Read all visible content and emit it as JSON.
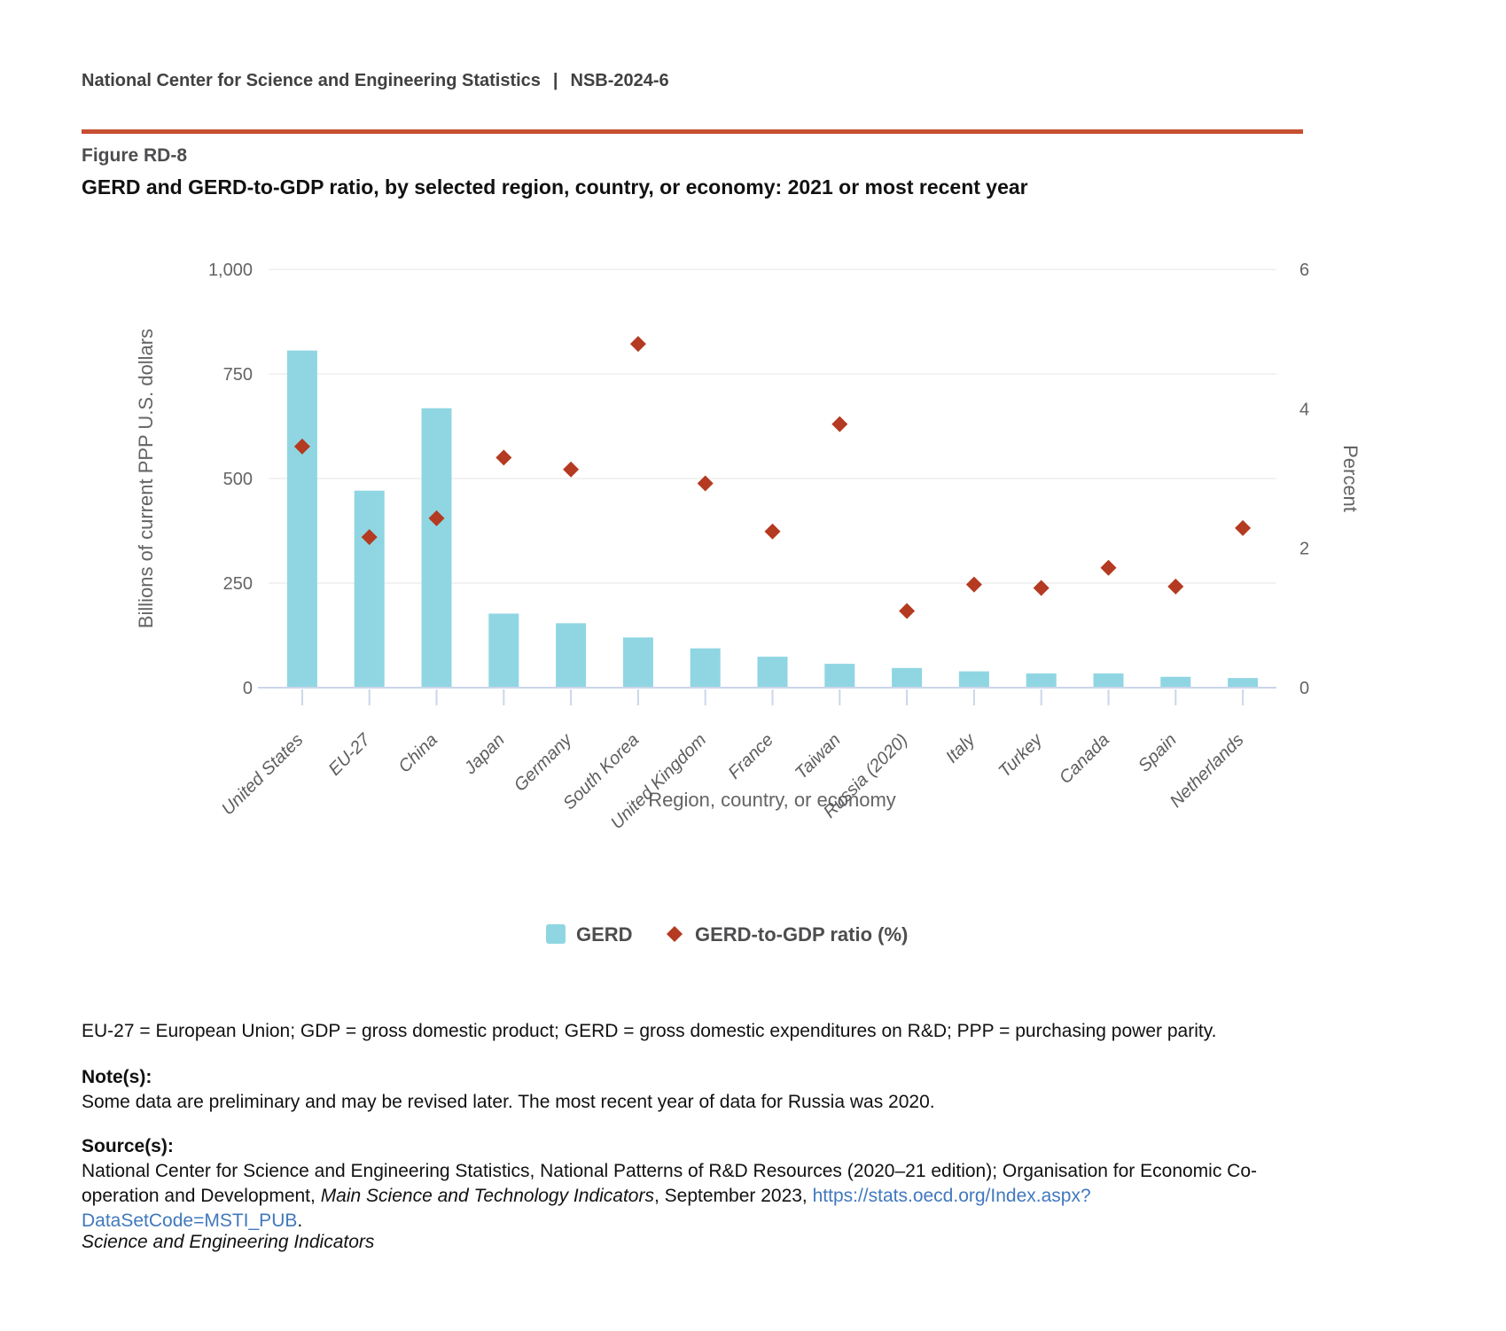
{
  "header": {
    "org": "National Center for Science and Engineering Statistics",
    "separator": "|",
    "report_id": "NSB-2024-6"
  },
  "figure": {
    "label": "Figure RD-8",
    "title": "GERD and GERD-to-GDP ratio, by selected region, country, or economy: 2021 or most recent year"
  },
  "chart_data": {
    "type": "bar",
    "categories": [
      "United States",
      "EU-27",
      "China",
      "Japan",
      "Germany",
      "South Korea",
      "United Kingdom",
      "France",
      "Taiwan",
      "Russia (2020)",
      "Italy",
      "Turkey",
      "Canada",
      "Spain",
      "Netherlands"
    ],
    "series": [
      {
        "name": "GERD",
        "type": "bar",
        "axis": "left",
        "values": [
          806,
          471,
          668,
          177,
          154,
          120,
          94,
          74,
          57,
          47,
          39,
          34,
          34,
          26,
          23
        ]
      },
      {
        "name": "GERD-to-GDP ratio (%)",
        "type": "scatter",
        "axis": "right",
        "values": [
          3.46,
          2.16,
          2.43,
          3.3,
          3.13,
          4.93,
          2.93,
          2.24,
          3.78,
          1.1,
          1.48,
          1.43,
          1.72,
          1.45,
          2.29
        ]
      }
    ],
    "xlabel": "Region, country, or economy",
    "ylabel_left": "Billions of current PPP U.S. dollars",
    "ylabel_right": "Percent",
    "left_axis": {
      "min": 0,
      "max": 1000,
      "ticks": [
        {
          "v": 0,
          "label": "0"
        },
        {
          "v": 250,
          "label": "250"
        },
        {
          "v": 500,
          "label": "500"
        },
        {
          "v": 750,
          "label": "750"
        },
        {
          "v": 1000,
          "label": "1,000"
        }
      ]
    },
    "right_axis": {
      "min": 0,
      "max": 6,
      "ticks": [
        {
          "v": 0,
          "label": "0"
        },
        {
          "v": 2,
          "label": "2"
        },
        {
          "v": 4,
          "label": "4"
        },
        {
          "v": 6,
          "label": "6"
        }
      ]
    },
    "grid": true,
    "legend_position": "bottom"
  },
  "legend": {
    "gerd": "GERD",
    "ratio": "GERD-to-GDP ratio (%)"
  },
  "footnotes": {
    "abbreviations": "EU-27 = European Union; GDP = gross domestic product; GERD = gross domestic expenditures on R&D; PPP = purchasing power parity.",
    "notes_heading": "Note(s):",
    "notes_text": "Some data are preliminary and may be revised later. The most recent year of data for Russia was 2020.",
    "sources_heading": "Source(s):",
    "source_part1": "National Center for Science and Engineering Statistics, National Patterns of R&D Resources (2020–21 edition); Organisation for Economic Co-operation and Development, ",
    "source_italic": "Main Science and Technology Indicators",
    "source_part2": ", September 2023, ",
    "source_link": "https://stats.oecd.org/Index.aspx?DataSetCode=MSTI_PUB",
    "source_part3": ".",
    "brand": "Science and Engineering Indicators"
  },
  "colors": {
    "accent_rule": "#c74f32",
    "bar": "#8fd6e2",
    "marker": "#b43a21",
    "grid": "#e6e6e6",
    "axis_line": "#ccd6eb",
    "link": "#4178be",
    "header_text": "#414042",
    "axis_text": "#636466"
  }
}
